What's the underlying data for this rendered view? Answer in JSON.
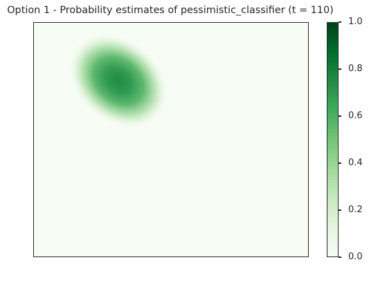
{
  "chart_data": {
    "type": "heatmap",
    "title": "Option 1 - Probability estimates of pessimistic_classifier (t = 110)",
    "xlabel": "",
    "ylabel": "",
    "colormap": "Greens",
    "colors": {
      "low": "#f7fcf5",
      "high": "#00441b"
    },
    "colorbar": {
      "range": [
        0.0,
        1.0
      ],
      "tick_labels": [
        "0.0",
        "0.2",
        "0.4",
        "0.6",
        "0.8",
        "1.0"
      ]
    },
    "peak_value": 0.9,
    "x_ticks_shown": false,
    "y_ticks_shown": false,
    "grid": false
  }
}
